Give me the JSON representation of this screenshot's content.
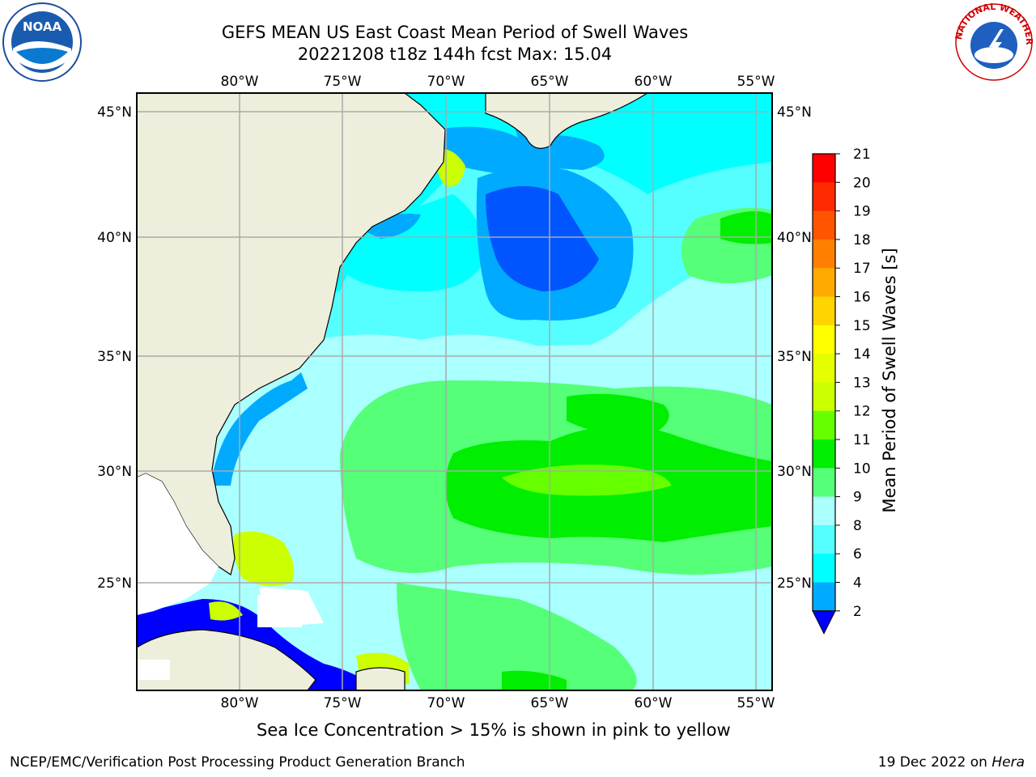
{
  "title": {
    "line1": "GEFS MEAN US East Coast Mean Period of Swell Waves",
    "line2": "20221208 t18z 144h fcst   Max: 15.04"
  },
  "map": {
    "lon_labels": [
      "80°W",
      "75°W",
      "70°W",
      "65°W",
      "60°W",
      "55°W"
    ],
    "lat_labels": [
      "45°N",
      "40°N",
      "35°N",
      "30°N",
      "25°N"
    ],
    "colors": {
      "land": "#eeeedc",
      "gridline": "#aaaaaa"
    }
  },
  "colorbar": {
    "title": "Mean Period of Swell Waves [s]",
    "levels": [
      "21",
      "20",
      "19",
      "18",
      "17",
      "16",
      "15",
      "14",
      "13",
      "12",
      "11",
      "10",
      "9",
      "8",
      "6",
      "4",
      "2"
    ],
    "colors_top_to_bottom": [
      "#ff0000",
      "#ff2a00",
      "#ff5500",
      "#ff8000",
      "#ffaa00",
      "#ffd400",
      "#ffff00",
      "#e6ff00",
      "#ccff00",
      "#66ff00",
      "#00ee00",
      "#55ff77",
      "#aaffff",
      "#55ffff",
      "#00ffff",
      "#00aaff",
      "#0055ff"
    ],
    "extend_color": "#0000ff"
  },
  "note": "Sea Ice Concentration > 15% is shown in pink to yellow",
  "footer": {
    "left": "NCEP/EMC/Verification Post Processing Product Generation Branch",
    "date": "19 Dec 2022 on ",
    "host": "Hera"
  },
  "logos": {
    "noaa_text": "NOAA",
    "nws_text": "NATIONAL WEATHER SERVICE"
  }
}
